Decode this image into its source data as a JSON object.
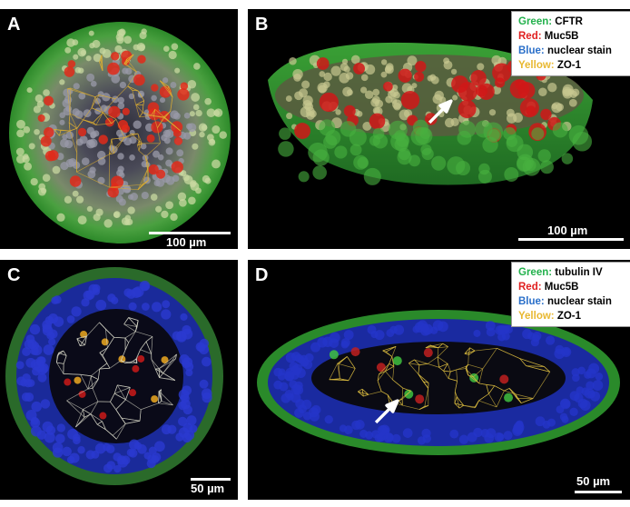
{
  "panels": {
    "a": {
      "letter": "A",
      "scale_label": "100 µm"
    },
    "b": {
      "letter": "B",
      "scale_label": "100 µm",
      "legend": [
        {
          "color_name": "Green:",
          "label": " CFTR",
          "color": "#22b14c"
        },
        {
          "color_name": "Red:",
          "label": " Muc5B",
          "color": "#e02020"
        },
        {
          "color_name": "Blue:",
          "label": " nuclear stain",
          "color": "#2a6fc9"
        },
        {
          "color_name": "Yellow:",
          "label": " ZO-1",
          "color": "#e8b830"
        }
      ]
    },
    "c": {
      "letter": "C",
      "scale_label": "50 µm"
    },
    "d": {
      "letter": "D",
      "scale_label": "50 µm",
      "legend": [
        {
          "color_name": "Green:",
          "label": " tubulin IV",
          "color": "#22b14c"
        },
        {
          "color_name": "Red:",
          "label": " Muc5B",
          "color": "#e02020"
        },
        {
          "color_name": "Blue:",
          "label": " nuclear stain",
          "color": "#2a6fc9"
        },
        {
          "color_name": "Yellow:",
          "label": " ZO-1",
          "color": "#e8b830"
        }
      ]
    }
  }
}
